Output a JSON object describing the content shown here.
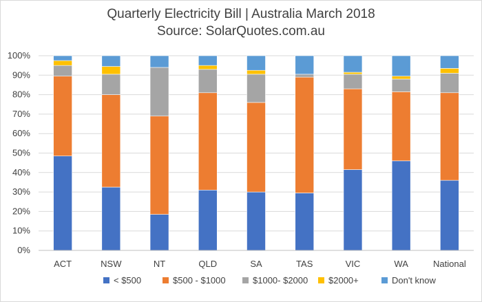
{
  "chart_data": {
    "type": "bar",
    "stacked": true,
    "title": "Quarterly Electricity Bill | Australia March 2018",
    "subtitle": "Source: SolarQuotes.com.au",
    "categories": [
      "ACT",
      "NSW",
      "NT",
      "QLD",
      "SA",
      "TAS",
      "VIC",
      "WA",
      "National"
    ],
    "series": [
      {
        "name": "< $500",
        "color": "#4472c4",
        "values": [
          48.5,
          32.5,
          18.5,
          31,
          30,
          29.5,
          41.5,
          46,
          36
        ]
      },
      {
        "name": "$500 - $1000",
        "color": "#ed7d31",
        "values": [
          41,
          47.5,
          50.5,
          50,
          46,
          59.5,
          41.5,
          35.5,
          45
        ]
      },
      {
        "name": "$1000- $2000",
        "color": "#a5a5a5",
        "values": [
          5.5,
          10.5,
          25,
          12,
          14.5,
          1.5,
          7.5,
          6.5,
          10
        ]
      },
      {
        "name": "$2000+",
        "color": "#ffc000",
        "values": [
          2.5,
          4,
          0,
          2,
          2,
          0,
          1,
          1.5,
          2.5
        ]
      },
      {
        "name": "Don't know",
        "color": "#5b9bd5",
        "values": [
          2.5,
          5.5,
          6,
          5,
          7.5,
          9.5,
          8.5,
          10.5,
          6.5
        ]
      }
    ],
    "ylim": [
      0,
      100
    ],
    "yticks": [
      "0%",
      "10%",
      "20%",
      "30%",
      "40%",
      "50%",
      "60%",
      "70%",
      "80%",
      "90%",
      "100%"
    ],
    "grid": true,
    "legend_position": "bottom"
  }
}
